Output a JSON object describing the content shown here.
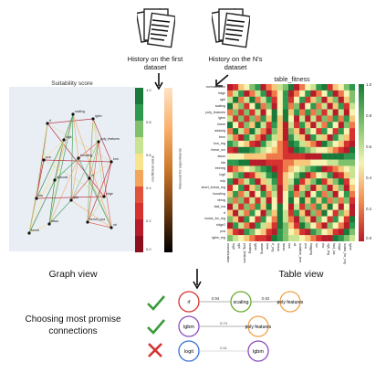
{
  "top": {
    "left_history_label": "History on the first dataset",
    "right_history_label": "History on the N's dataset"
  },
  "graph_panel": {
    "title": "Suitability score",
    "node_labels": [
      "rf",
      "scaling",
      "lgbm",
      "logit",
      "poly_features",
      "pca",
      "boosting",
      "knn",
      "xgboost",
      "dt",
      "lda",
      "qda",
      "ridge",
      "lasso",
      "kernel_pca",
      "bernb",
      "nb"
    ],
    "colorbar_label": "coefficient value",
    "colorbar_ticks": [
      "1.0",
      "0.8",
      "0.6",
      "0.4",
      "0.2",
      "0.0"
    ],
    "colorbar2_label": "Relevant for experiments",
    "colors": {
      "high": "#1a7a3a",
      "mid": "#d7e8a0",
      "low": "#b71c2a"
    }
  },
  "table_panel": {
    "title": "table_fitness",
    "row_labels": [
      "normalization",
      "ridge",
      "rgbl",
      "scaling",
      "poly_features",
      "lgbm",
      "linear",
      "adamig",
      "bern",
      "knn_reg",
      "linear_svr",
      "lasso",
      "lda",
      "treereg",
      "logit",
      "mlp",
      "short_foreat_reg",
      "boosting",
      "xbrog",
      "fast_ica",
      "rf",
      "isolax_for_reg",
      "ridge2",
      "pca",
      "lgbm_reg"
    ],
    "col_labels": [
      "normalization",
      "logit",
      "rgbl",
      "poly_features",
      "scaling",
      "lgbm",
      "adamig",
      "bern",
      "rf_reg",
      "linear",
      "lasso",
      "knn",
      "dt",
      "isolation_tree",
      "pca",
      "bagging",
      "svr",
      "rfor",
      "xgb_reg",
      "fast_ica",
      "ridge",
      "isolax_for_reg",
      "lgbm"
    ],
    "colorbar_ticks": [
      "1.0",
      "0.8",
      "0.6",
      "0.4",
      "0.2",
      "0.0"
    ]
  },
  "captions": {
    "graph_view": "Graph view",
    "table_view": "Table view",
    "choosing": "Choosing most promise connections"
  },
  "connections": [
    {
      "status": "accept",
      "from": "rf",
      "weight": "0.94",
      "mid": "scaling",
      "weight2": "0.92",
      "to": "poly features"
    },
    {
      "status": "accept",
      "from": "lgbm",
      "weight": "0.74",
      "to": "poly features"
    },
    {
      "status": "reject",
      "from": "logit",
      "weight": "0.11",
      "to": "lgbm"
    }
  ]
}
